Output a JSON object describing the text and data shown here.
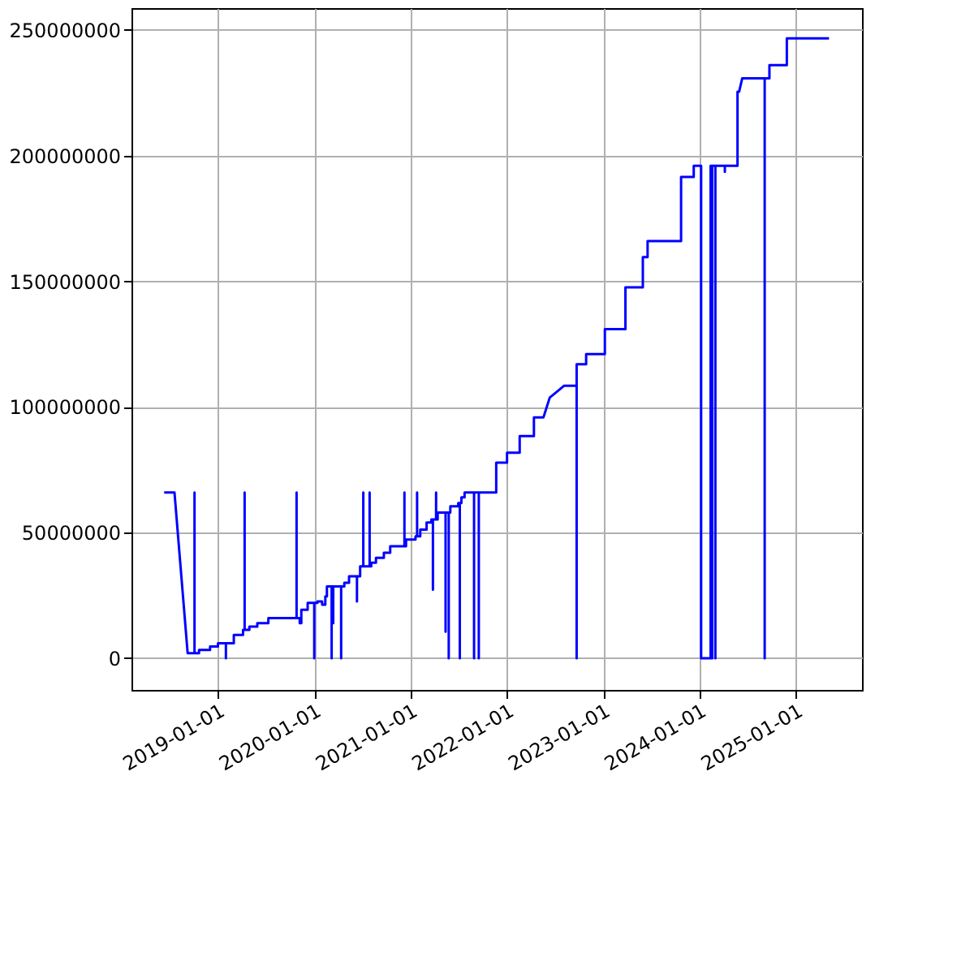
{
  "chart_data": {
    "type": "line",
    "color": "#0000ff",
    "grid": true,
    "line_style": "solid",
    "marker": "none",
    "x": [
      "2018-06-11",
      "2018-07-20",
      "2018-09-08",
      "2018-10-04",
      "2018-10-04",
      "2018-10-04",
      "2018-10-21",
      "2018-10-21",
      "2018-12-02",
      "2018-12-02",
      "2019-01-01",
      "2019-01-01",
      "2019-01-31",
      "2019-01-31",
      "2019-01-31",
      "2019-03-02",
      "2019-03-02",
      "2019-04-06",
      "2019-04-06",
      "2019-04-12",
      "2019-04-12",
      "2019-04-12",
      "2019-04-30",
      "2019-04-30",
      "2019-05-30",
      "2019-05-30",
      "2019-07-11",
      "2019-07-11",
      "2019-10-26",
      "2019-10-26",
      "2019-10-26",
      "2019-11-07",
      "2019-11-07",
      "2019-11-13",
      "2019-11-13",
      "2019-12-07",
      "2019-12-07",
      "2020-01-01",
      "2020-01-01",
      "2020-01-01",
      "2020-01-13",
      "2020-01-13",
      "2020-01-31",
      "2020-01-31",
      "2020-02-12",
      "2020-02-12",
      "2020-02-18",
      "2020-02-18",
      "2020-03-07",
      "2020-03-07",
      "2020-03-07",
      "2020-03-13",
      "2020-03-13",
      "2020-03-13",
      "2020-04-12",
      "2020-04-12",
      "2020-04-12",
      "2020-04-24",
      "2020-04-24",
      "2020-05-12",
      "2020-05-12",
      "2020-06-11",
      "2020-06-11",
      "2020-06-11",
      "2020-06-23",
      "2020-06-23",
      "2020-07-05",
      "2020-07-05",
      "2020-07-05",
      "2020-07-29",
      "2020-07-29",
      "2020-07-29",
      "2020-08-04",
      "2020-08-04",
      "2020-08-22",
      "2020-08-22",
      "2020-09-21",
      "2020-09-21",
      "2020-10-15",
      "2020-10-15",
      "2020-12-08",
      "2020-12-08",
      "2020-12-08",
      "2020-12-14",
      "2020-12-14",
      "2021-01-19",
      "2021-01-19",
      "2021-01-25",
      "2021-01-25",
      "2021-01-25",
      "2021-02-06",
      "2021-02-06",
      "2021-03-02",
      "2021-03-02",
      "2021-03-20",
      "2021-03-20",
      "2021-03-26",
      "2021-03-26",
      "2021-03-26",
      "2021-04-07",
      "2021-04-07",
      "2021-04-07",
      "2021-04-13",
      "2021-04-13",
      "2021-05-13",
      "2021-05-13",
      "2021-05-13",
      "2021-05-25",
      "2021-05-25",
      "2021-05-25",
      "2021-05-31",
      "2021-05-31",
      "2021-06-30",
      "2021-06-30",
      "2021-07-06",
      "2021-07-06",
      "2021-07-06",
      "2021-07-12",
      "2021-07-12",
      "2021-07-24",
      "2021-07-24",
      "2021-08-29",
      "2021-08-29",
      "2021-08-29",
      "2021-09-16",
      "2021-09-16",
      "2021-09-16",
      "2021-11-21",
      "2021-11-21",
      "2022-01-01",
      "2022-01-01",
      "2022-02-18",
      "2022-02-18",
      "2022-04-13",
      "2022-04-13",
      "2022-05-19",
      "2022-06-12",
      "2022-08-05",
      "2022-09-10",
      "2022-09-22",
      "2022-09-22",
      "2022-09-22",
      "2022-10-28",
      "2022-10-28",
      "2023-01-07",
      "2023-01-07",
      "2023-03-26",
      "2023-03-26",
      "2023-05-31",
      "2023-05-31",
      "2023-06-18",
      "2023-06-18",
      "2023-10-23",
      "2023-10-23",
      "2023-12-10",
      "2023-12-10",
      "2024-01-07",
      "2024-01-07",
      "2024-02-12",
      "2024-02-12",
      "2024-02-18",
      "2024-02-18",
      "2024-02-18",
      "2024-03-01",
      "2024-03-01",
      "2024-03-01",
      "2024-04-06",
      "2024-04-06",
      "2024-04-06",
      "2024-05-24",
      "2024-05-24",
      "2024-05-30",
      "2024-06-11",
      "2024-09-04",
      "2024-09-04",
      "2024-09-04",
      "2024-09-22",
      "2024-09-22",
      "2024-11-27",
      "2024-11-27",
      "2025-05-06"
    ],
    "values": [
      66000000,
      66000000,
      2000000,
      2000000,
      66000000,
      2000000,
      2000000,
      3300000,
      3300000,
      4700000,
      4700000,
      6000000,
      6000000,
      0,
      6000000,
      6000000,
      9300000,
      9300000,
      11300000,
      11300000,
      66000000,
      11300000,
      11300000,
      12600000,
      12600000,
      14000000,
      14000000,
      16000000,
      16000000,
      66000000,
      16000000,
      16000000,
      14000000,
      14000000,
      19300000,
      19300000,
      22000000,
      22000000,
      0,
      22000000,
      22000000,
      22600000,
      22600000,
      21300000,
      21300000,
      24600000,
      24600000,
      28600000,
      28600000,
      0,
      28600000,
      28600000,
      14000000,
      28600000,
      28600000,
      0,
      28600000,
      28600000,
      30000000,
      30000000,
      32600000,
      32600000,
      22600000,
      32600000,
      32600000,
      36600000,
      36600000,
      66000000,
      36600000,
      36600000,
      66000000,
      36600000,
      36600000,
      38000000,
      38000000,
      40000000,
      40000000,
      42000000,
      42000000,
      44600000,
      44600000,
      66000000,
      44600000,
      44600000,
      47200000,
      47200000,
      48500000,
      48500000,
      66000000,
      48500000,
      48500000,
      51200000,
      51200000,
      54000000,
      54000000,
      55200000,
      55200000,
      27300000,
      55200000,
      55200000,
      66000000,
      55200000,
      55200000,
      58000000,
      58000000,
      10600000,
      58000000,
      58000000,
      0,
      58000000,
      58000000,
      60500000,
      60500000,
      61800000,
      61800000,
      0,
      61800000,
      61800000,
      64000000,
      64000000,
      66000000,
      66000000,
      0,
      66000000,
      66000000,
      0,
      66000000,
      66000000,
      77800000,
      77800000,
      81800000,
      81800000,
      88400000,
      88400000,
      95800000,
      95800000,
      103700000,
      108400000,
      108400000,
      108400000,
      0,
      117000000,
      117000000,
      121000000,
      121000000,
      131000000,
      131000000,
      147600000,
      147600000,
      159600000,
      159600000,
      166000000,
      166000000,
      191500000,
      191500000,
      196000000,
      196000000,
      0,
      0,
      196000000,
      196000000,
      0,
      196000000,
      196000000,
      0,
      196000000,
      196000000,
      193500000,
      196000000,
      196000000,
      225400000,
      225400000,
      230800000,
      230800000,
      0,
      230800000,
      230800000,
      236000000,
      236000000,
      246700000,
      246700000
    ],
    "xlim": [
      "2018-02-07",
      "2025-09-08"
    ],
    "xticks": [
      "2019-01-01",
      "2020-01-01",
      "2021-01-01",
      "2022-01-01",
      "2023-01-01",
      "2024-01-01",
      "2025-01-01"
    ],
    "ylim": [
      -12600000,
      258700000
    ],
    "yticks": [
      0,
      50000000,
      100000000,
      150000000,
      200000000,
      250000000
    ]
  }
}
